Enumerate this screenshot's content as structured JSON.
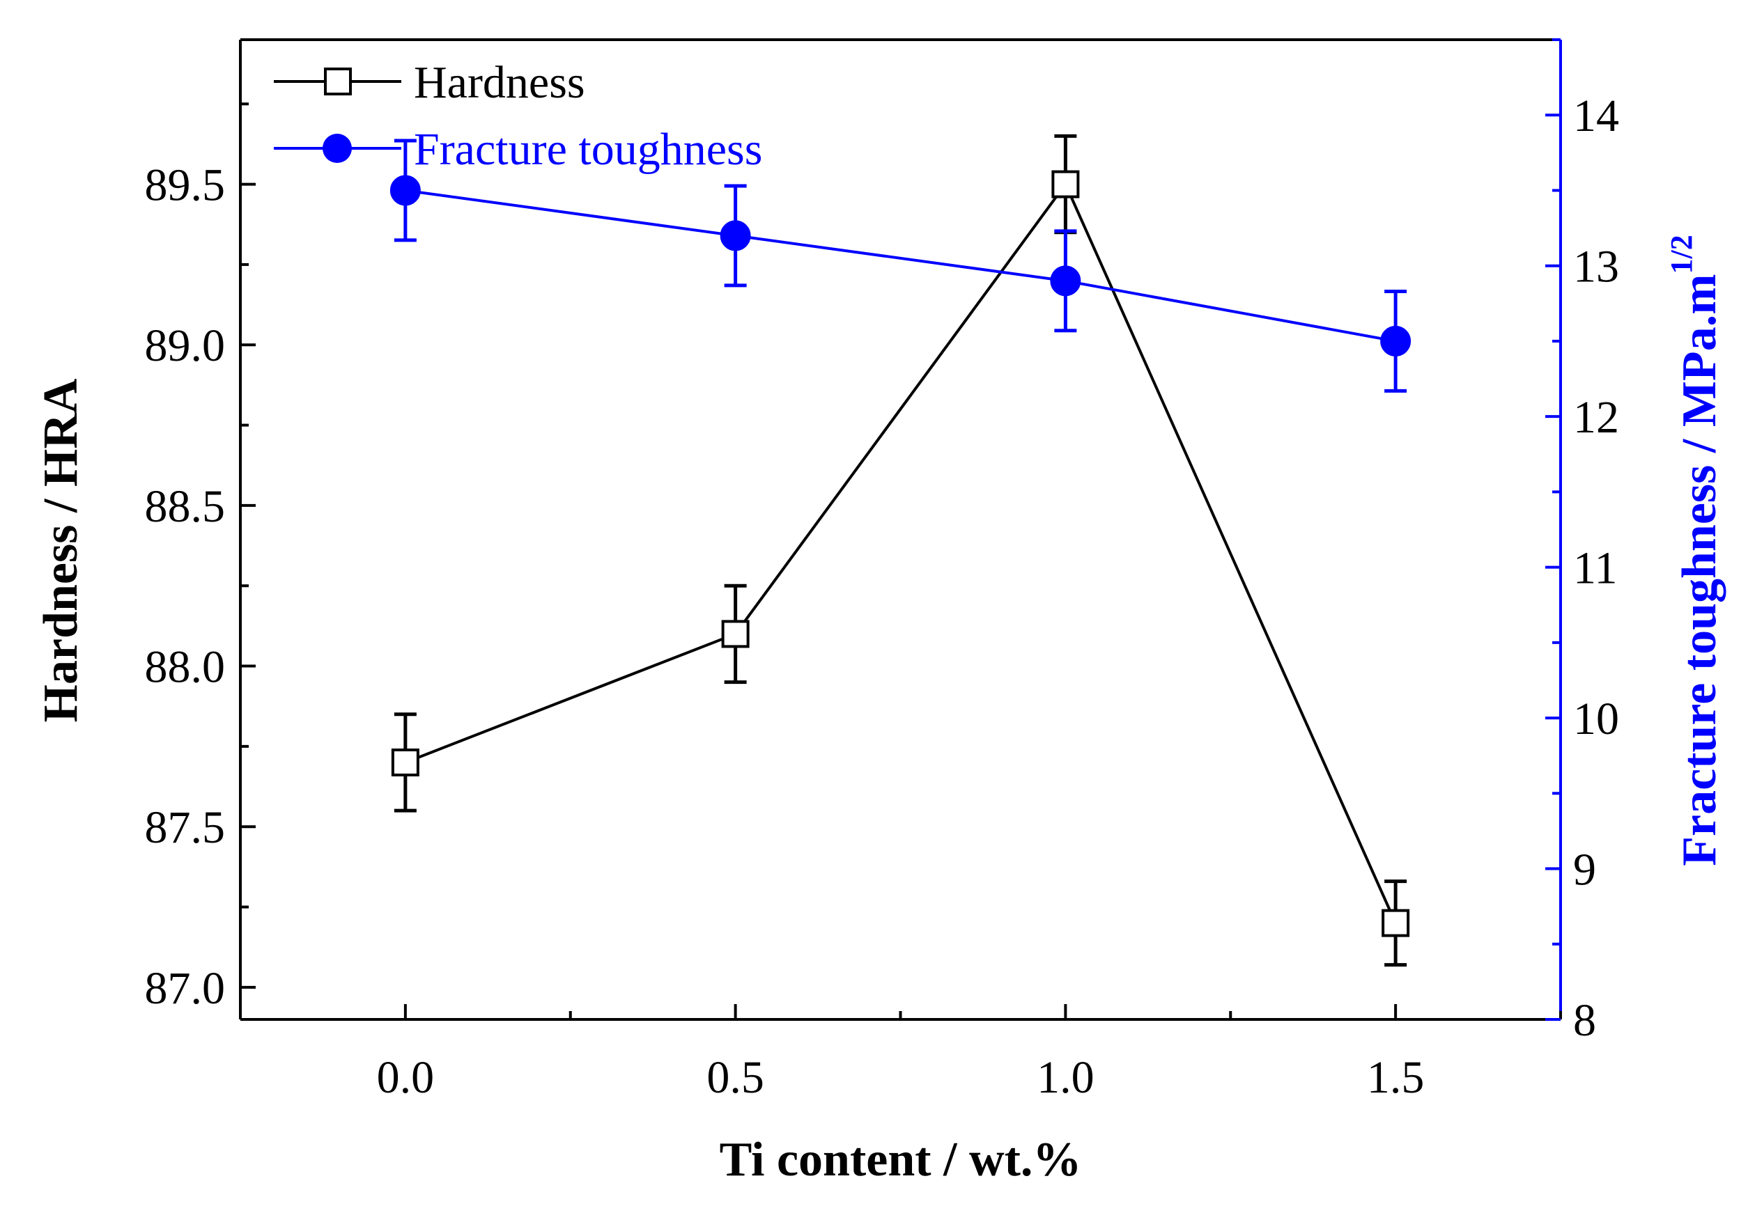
{
  "chart_data": {
    "type": "line",
    "xlabel": "Ti content / wt.%",
    "ylabel_left": "Hardness / HRA",
    "ylabel_right": "Fracture toughness / MPa.m",
    "ylabel_right_superscript": "1/2",
    "xlim": [
      -0.25,
      1.75
    ],
    "ylim_left": [
      86.9,
      89.95
    ],
    "ylim_right": [
      8,
      14.5
    ],
    "x_ticks": [
      0.0,
      0.5,
      1.0,
      1.5
    ],
    "x_tick_labels": [
      "0.0",
      "0.5",
      "1.0",
      "1.5"
    ],
    "y_left_ticks": [
      87.0,
      87.5,
      88.0,
      88.5,
      89.0,
      89.5
    ],
    "y_left_tick_labels": [
      "87.0",
      "87.5",
      "88.0",
      "88.5",
      "89.0",
      "89.5"
    ],
    "y_right_ticks": [
      8,
      9,
      10,
      11,
      12,
      13,
      14
    ],
    "y_right_tick_labels": [
      "8",
      "9",
      "10",
      "11",
      "12",
      "13",
      "14"
    ],
    "series": [
      {
        "name": "Hardness",
        "axis": "left",
        "marker": "open-square",
        "color": "#000000",
        "x": [
          0.0,
          0.5,
          1.0,
          1.5
        ],
        "values": [
          87.7,
          88.1,
          89.5,
          87.2
        ],
        "errors": [
          0.15,
          0.15,
          0.15,
          0.13
        ]
      },
      {
        "name": "Fracture toughness",
        "axis": "right",
        "marker": "filled-circle",
        "color": "#0000ff",
        "x": [
          0.0,
          0.5,
          1.0,
          1.5
        ],
        "values": [
          13.5,
          13.2,
          12.9,
          12.5
        ],
        "errors": [
          0.33,
          0.33,
          0.33,
          0.33
        ]
      }
    ]
  }
}
